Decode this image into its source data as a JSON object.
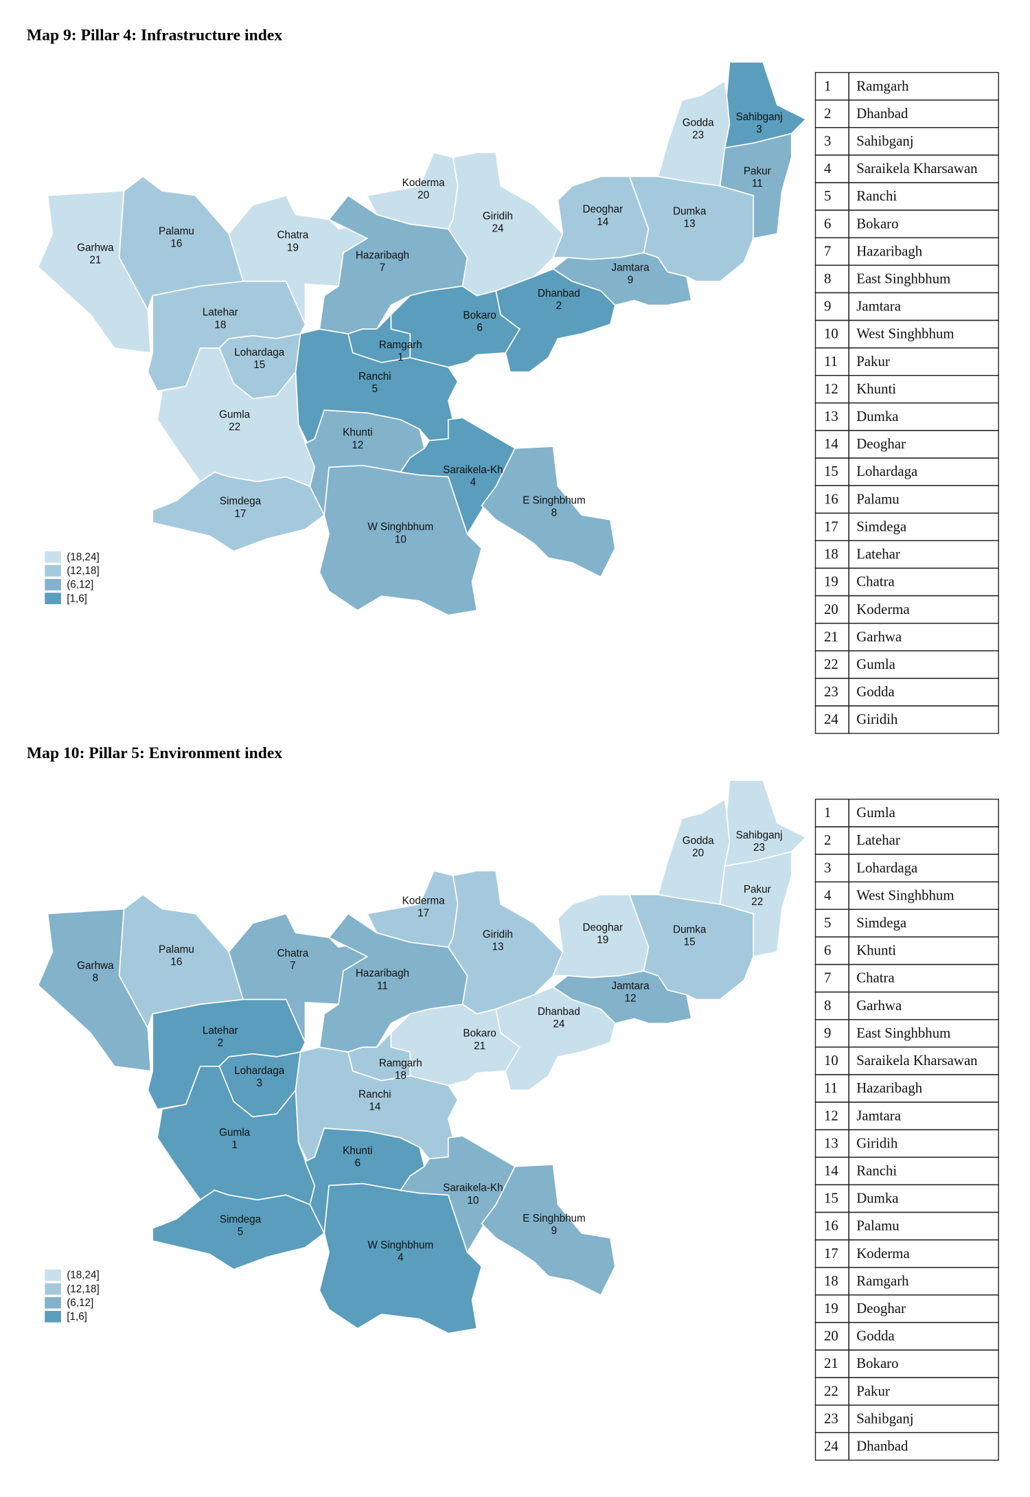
{
  "maps": [
    {
      "title": "Map 9: Pillar 4: Infrastructure index",
      "legend": [
        {
          "label": "(18,24]",
          "color": "#c8e0ec"
        },
        {
          "label": "(12,18]",
          "color": "#a5c9dc"
        },
        {
          "label": "(6,12]",
          "color": "#83b2cb"
        },
        {
          "label": "[1,6]",
          "color": "#5a9dbd"
        }
      ],
      "districts": [
        {
          "name": "Garhwa",
          "rank": 21
        },
        {
          "name": "Palamu",
          "rank": 16
        },
        {
          "name": "Chatra",
          "rank": 19
        },
        {
          "name": "Latehar",
          "rank": 18
        },
        {
          "name": "Lohardaga",
          "rank": 15
        },
        {
          "name": "Gumla",
          "rank": 22
        },
        {
          "name": "Simdega",
          "rank": 17
        },
        {
          "name": "Ranchi",
          "rank": 5
        },
        {
          "name": "Khunti",
          "rank": 12
        },
        {
          "name": "W Singhbhum",
          "rank": 10
        },
        {
          "name": "Saraikela-Kh",
          "rank": 4
        },
        {
          "name": "E Singhbhum",
          "rank": 8
        },
        {
          "name": "Hazaribagh",
          "rank": 7
        },
        {
          "name": "Koderma",
          "rank": 20
        },
        {
          "name": "Giridih",
          "rank": 24
        },
        {
          "name": "Bokaro",
          "rank": 6
        },
        {
          "name": "Ramgarh",
          "rank": 1
        },
        {
          "name": "Dhanbad",
          "rank": 2
        },
        {
          "name": "Deoghar",
          "rank": 14
        },
        {
          "name": "Jamtara",
          "rank": 9
        },
        {
          "name": "Dumka",
          "rank": 13
        },
        {
          "name": "Godda",
          "rank": 23
        },
        {
          "name": "Sahibganj",
          "rank": 3
        },
        {
          "name": "Pakur",
          "rank": 11
        }
      ],
      "table": [
        {
          "rank": 1,
          "name": "Ramgarh"
        },
        {
          "rank": 2,
          "name": "Dhanbad"
        },
        {
          "rank": 3,
          "name": "Sahibganj"
        },
        {
          "rank": 4,
          "name": "Saraikela Kharsawan"
        },
        {
          "rank": 5,
          "name": "Ranchi"
        },
        {
          "rank": 6,
          "name": "Bokaro"
        },
        {
          "rank": 7,
          "name": "Hazaribagh"
        },
        {
          "rank": 8,
          "name": "East Singhbhum"
        },
        {
          "rank": 9,
          "name": "Jamtara"
        },
        {
          "rank": 10,
          "name": "West Singhbhum"
        },
        {
          "rank": 11,
          "name": "Pakur"
        },
        {
          "rank": 12,
          "name": "Khunti"
        },
        {
          "rank": 13,
          "name": "Dumka"
        },
        {
          "rank": 14,
          "name": "Deoghar"
        },
        {
          "rank": 15,
          "name": "Lohardaga"
        },
        {
          "rank": 16,
          "name": "Palamu"
        },
        {
          "rank": 17,
          "name": "Simdega"
        },
        {
          "rank": 18,
          "name": "Latehar"
        },
        {
          "rank": 19,
          "name": "Chatra"
        },
        {
          "rank": 20,
          "name": "Koderma"
        },
        {
          "rank": 21,
          "name": "Garhwa"
        },
        {
          "rank": 22,
          "name": "Gumla"
        },
        {
          "rank": 23,
          "name": "Godda"
        },
        {
          "rank": 24,
          "name": "Giridih"
        }
      ]
    },
    {
      "title": "Map 10: Pillar 5: Environment index",
      "legend": [
        {
          "label": "(18,24]",
          "color": "#c8e0ec"
        },
        {
          "label": "(12,18]",
          "color": "#a5c9dc"
        },
        {
          "label": "(6,12]",
          "color": "#83b2cb"
        },
        {
          "label": "[1,6]",
          "color": "#5a9dbd"
        }
      ],
      "districts": [
        {
          "name": "Garhwa",
          "rank": 8
        },
        {
          "name": "Palamu",
          "rank": 16
        },
        {
          "name": "Chatra",
          "rank": 7
        },
        {
          "name": "Latehar",
          "rank": 2
        },
        {
          "name": "Lohardaga",
          "rank": 3
        },
        {
          "name": "Gumla",
          "rank": 1
        },
        {
          "name": "Simdega",
          "rank": 5
        },
        {
          "name": "Ranchi",
          "rank": 14
        },
        {
          "name": "Khunti",
          "rank": 6
        },
        {
          "name": "W Singhbhum",
          "rank": 4
        },
        {
          "name": "Saraikela-Kh",
          "rank": 10
        },
        {
          "name": "E Singhbhum",
          "rank": 9
        },
        {
          "name": "Hazaribagh",
          "rank": 11
        },
        {
          "name": "Koderma",
          "rank": 17
        },
        {
          "name": "Giridih",
          "rank": 13
        },
        {
          "name": "Bokaro",
          "rank": 21
        },
        {
          "name": "Ramgarh",
          "rank": 18
        },
        {
          "name": "Dhanbad",
          "rank": 24
        },
        {
          "name": "Deoghar",
          "rank": 19
        },
        {
          "name": "Jamtara",
          "rank": 12
        },
        {
          "name": "Dumka",
          "rank": 15
        },
        {
          "name": "Godda",
          "rank": 20
        },
        {
          "name": "Sahibganj",
          "rank": 23
        },
        {
          "name": "Pakur",
          "rank": 22
        }
      ],
      "table": [
        {
          "rank": 1,
          "name": "Gumla"
        },
        {
          "rank": 2,
          "name": "Latehar"
        },
        {
          "rank": 3,
          "name": "Lohardaga"
        },
        {
          "rank": 4,
          "name": "West Singhbhum"
        },
        {
          "rank": 5,
          "name": "Simdega"
        },
        {
          "rank": 6,
          "name": "Khunti"
        },
        {
          "rank": 7,
          "name": "Chatra"
        },
        {
          "rank": 8,
          "name": "Garhwa"
        },
        {
          "rank": 9,
          "name": "East Singhbhum"
        },
        {
          "rank": 10,
          "name": "Saraikela Kharsawan"
        },
        {
          "rank": 11,
          "name": "Hazaribagh"
        },
        {
          "rank": 12,
          "name": "Jamtara"
        },
        {
          "rank": 13,
          "name": "Giridih"
        },
        {
          "rank": 14,
          "name": "Ranchi"
        },
        {
          "rank": 15,
          "name": "Dumka"
        },
        {
          "rank": 16,
          "name": "Palamu"
        },
        {
          "rank": 17,
          "name": "Koderma"
        },
        {
          "rank": 18,
          "name": "Ramgarh"
        },
        {
          "rank": 19,
          "name": "Deoghar"
        },
        {
          "rank": 20,
          "name": "Godda"
        },
        {
          "rank": 21,
          "name": "Bokaro"
        },
        {
          "rank": 22,
          "name": "Pakur"
        },
        {
          "rank": 23,
          "name": "Sahibganj"
        },
        {
          "rank": 24,
          "name": "Dhanbad"
        }
      ]
    }
  ]
}
